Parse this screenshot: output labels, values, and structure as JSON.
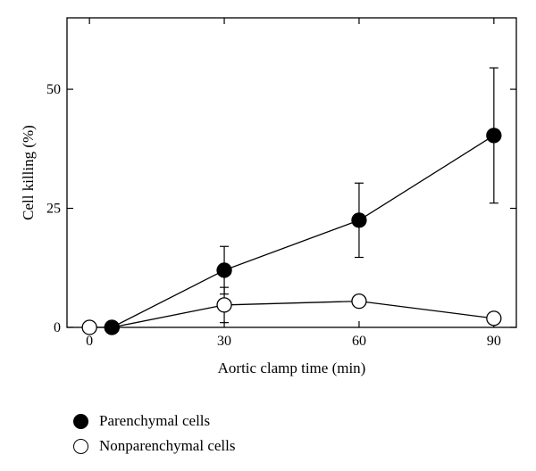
{
  "chart_data": {
    "type": "line",
    "xlabel": "Aortic clamp time (min)",
    "ylabel": "Cell killing (%)",
    "xlim": [
      -5,
      95
    ],
    "ylim": [
      0,
      65
    ],
    "xticks": [
      0,
      30,
      60,
      90
    ],
    "yticks": [
      0,
      25,
      50
    ],
    "series": [
      {
        "name": "Parenchymal cells",
        "marker": "filled-circle",
        "color": "#000000",
        "points": [
          {
            "x": 5,
            "y": 0
          },
          {
            "x": 30,
            "y": 12,
            "err": 5
          },
          {
            "x": 60,
            "y": 22.5,
            "err": 7.8
          },
          {
            "x": 90,
            "y": 40.3,
            "err": 14.2
          }
        ]
      },
      {
        "name": "Nonparenchymal cells",
        "marker": "open-circle",
        "color": "#000000",
        "points": [
          {
            "x": 0,
            "y": 0
          },
          {
            "x": 5,
            "y": 0
          },
          {
            "x": 30,
            "y": 4.7,
            "err": 3.7
          },
          {
            "x": 60,
            "y": 5.5
          },
          {
            "x": 90,
            "y": 1.9
          }
        ]
      }
    ]
  }
}
